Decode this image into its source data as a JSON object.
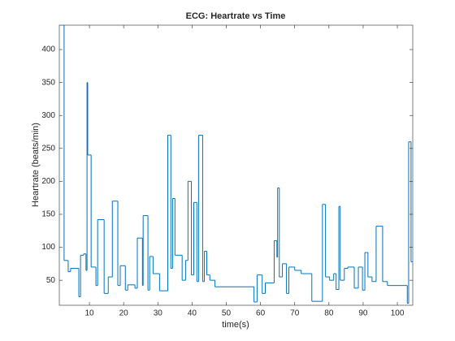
{
  "chart_data": {
    "type": "stairs",
    "title": "ECG: Heartrate vs Time",
    "xlabel": "time(s)",
    "ylabel": "Heartrate (beats/min)",
    "series": [
      {
        "color": "#0072bd",
        "x": [
          1.2,
          2.6,
          3.8,
          4.5,
          6.9,
          7.4,
          8.3,
          9.0,
          9.3,
          9.5,
          10.5,
          11.9,
          12.4,
          14.3,
          15.5,
          16.7,
          18.3,
          19.0,
          20.5,
          21.2,
          23.3,
          24.0,
          25.5,
          25.7,
          27.1,
          27.6,
          28.6,
          30.5,
          32.9,
          33.8,
          34.3,
          35.0,
          37.1,
          38.1,
          38.8,
          39.8,
          40.5,
          41.4,
          41.9,
          43.1,
          43.6,
          44.3,
          45.2,
          46.7,
          58.1,
          59.0,
          60.5,
          61.4,
          64.0,
          64.8,
          65.0,
          65.5,
          66.4,
          67.6,
          68.3,
          70.0,
          71.9,
          75.0,
          78.1,
          79.0,
          80.2,
          81.4,
          82.1,
          82.9,
          83.3,
          84.5,
          85.5,
          87.4,
          88.6,
          89.8,
          90.5,
          91.4,
          92.6,
          93.8,
          95.7,
          97.1,
          102.9,
          103.3,
          104.0,
          104.5
        ],
        "values": [
          437,
          80,
          63,
          68,
          25,
          88,
          90,
          65,
          350,
          240,
          70,
          42,
          142,
          30,
          55,
          170,
          42,
          72,
          35,
          43,
          38,
          114,
          42,
          148,
          35,
          86,
          60,
          34,
          270,
          68,
          174,
          88,
          50,
          80,
          200,
          58,
          168,
          48,
          270,
          48,
          94,
          58,
          50,
          40,
          17,
          58,
          30,
          46,
          110,
          85,
          190,
          55,
          75,
          30,
          70,
          65,
          60,
          18,
          165,
          55,
          50,
          60,
          36,
          162,
          50,
          68,
          70,
          38,
          70,
          35,
          92,
          55,
          48,
          132,
          48,
          42,
          15,
          260,
          78,
          78
        ]
      }
    ],
    "xlim": [
      1.2,
      104.5
    ],
    "ylim": [
      12,
      437
    ],
    "xticks": [
      10,
      20,
      30,
      40,
      50,
      60,
      70,
      80,
      90,
      100
    ],
    "yticks": [
      50,
      100,
      150,
      200,
      250,
      300,
      350,
      400
    ]
  }
}
